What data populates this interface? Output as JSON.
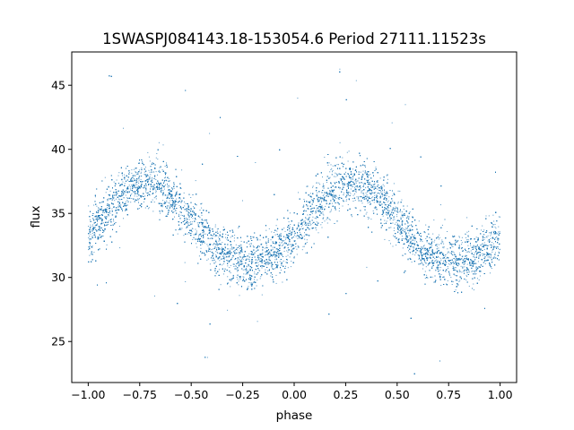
{
  "chart_data": {
    "type": "scatter",
    "title": "1SWASPJ084143.18-153054.6 Period 27111.11523s",
    "xlabel": "phase",
    "ylabel": "flux",
    "xlim": [
      -1.08,
      1.08
    ],
    "ylim": [
      21.8,
      47.6
    ],
    "xticks": [
      -1.0,
      -0.75,
      -0.5,
      -0.25,
      0.0,
      0.25,
      0.5,
      0.75,
      1.0
    ],
    "xtick_labels": [
      "−1.00",
      "−0.75",
      "−0.50",
      "−0.25",
      "0.00",
      "0.25",
      "0.50",
      "0.75",
      "1.00"
    ],
    "yticks": [
      25,
      30,
      35,
      40,
      45
    ],
    "ytick_labels": [
      "25",
      "30",
      "35",
      "40",
      "45"
    ],
    "grid": false,
    "legend": "none",
    "marker_color": "#1f77b4",
    "light_curve": {
      "phase_range": [
        -1.0,
        1.0
      ],
      "cycles": 2,
      "max_phase": [
        -0.72,
        0.28
      ],
      "min_phase": [
        -0.22,
        0.78
      ],
      "max_flux": 37.2,
      "min_flux": 31.0,
      "scatter": 1.0,
      "n_points": 14000
    }
  }
}
